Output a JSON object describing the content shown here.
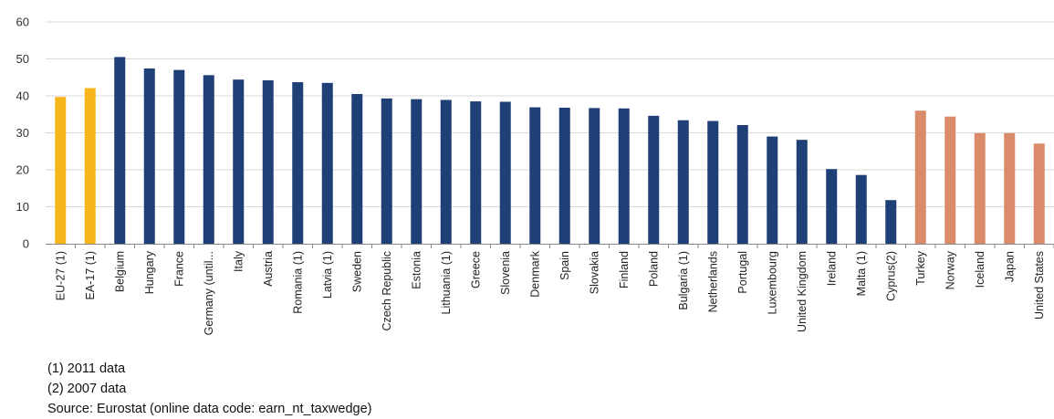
{
  "chart_data": {
    "type": "bar",
    "categories": [
      "EU-27 (1)",
      "EA-17 (1)",
      "Belgium",
      "Hungary",
      "France",
      "Germany (until...",
      "Italy",
      "Austria",
      "Romania (1)",
      "Latvia (1)",
      "Sweden",
      "Czech Republic",
      "Estonia",
      "Lithuania (1)",
      "Greece",
      "Slovenia",
      "Denmark",
      "Spain",
      "Slovakia",
      "Finland",
      "Poland",
      "Bulgaria (1)",
      "Netherlands",
      "Portugal",
      "Luxembourg",
      "United Kingdom",
      "Ireland",
      "Malta (1)",
      "Cyprus(2)",
      "Turkey",
      "Norway",
      "Iceland",
      "Japan",
      "United States"
    ],
    "values": [
      39.7,
      42.1,
      50.5,
      47.4,
      47.0,
      45.6,
      44.4,
      44.2,
      43.7,
      43.5,
      40.5,
      39.3,
      39.1,
      38.9,
      38.5,
      38.4,
      36.9,
      36.8,
      36.7,
      36.6,
      34.6,
      33.4,
      33.2,
      32.1,
      29.0,
      28.1,
      20.2,
      18.6,
      11.8,
      36.0,
      34.4,
      29.9,
      29.9,
      27.1
    ],
    "bar_colors": [
      "#f6b51b",
      "#f6b51b",
      "#1f3f77",
      "#1f3f77",
      "#1f3f77",
      "#1f3f77",
      "#1f3f77",
      "#1f3f77",
      "#1f3f77",
      "#1f3f77",
      "#1f3f77",
      "#1f3f77",
      "#1f3f77",
      "#1f3f77",
      "#1f3f77",
      "#1f3f77",
      "#1f3f77",
      "#1f3f77",
      "#1f3f77",
      "#1f3f77",
      "#1f3f77",
      "#1f3f77",
      "#1f3f77",
      "#1f3f77",
      "#1f3f77",
      "#1f3f77",
      "#1f3f77",
      "#1f3f77",
      "#1f3f77",
      "#d98b6a",
      "#d98b6a",
      "#d98b6a",
      "#d98b6a",
      "#d98b6a"
    ],
    "yticks": [
      0,
      10,
      20,
      30,
      40,
      50,
      60
    ],
    "ylim": [
      0,
      60
    ],
    "grid": true,
    "grid_color": "#d9d9d9",
    "title": "",
    "xlabel": "",
    "ylabel": ""
  },
  "notes": {
    "note1": "(1) 2011 data",
    "note2": "(2) 2007 data",
    "source": "Source: Eurostat (online data code: earn_nt_taxwedge)"
  }
}
